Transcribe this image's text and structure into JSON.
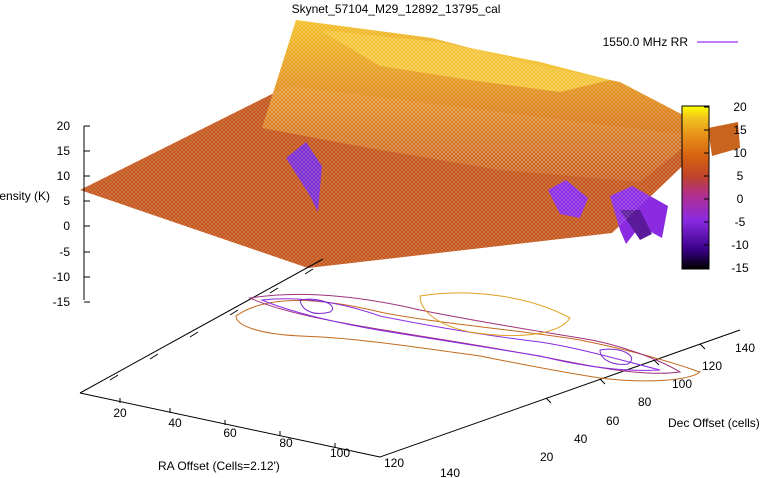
{
  "chart_data": {
    "type": "surface3d",
    "title": "Skynet_57104_M29_12892_13795_cal",
    "series": [
      {
        "name": "1550.0 MHz RR",
        "legend_line_color": "#9b30ff"
      }
    ],
    "axes": {
      "z": {
        "label": "Intensity (K)",
        "ticks": [
          "20",
          "15",
          "10",
          "5",
          "0",
          "-5",
          "-10",
          "-15"
        ],
        "range": [
          -15,
          20
        ]
      },
      "x": {
        "label": "RA Offset (Cells=2.12')",
        "ticks": [
          "20",
          "40",
          "60",
          "80",
          "100",
          "120",
          "140"
        ],
        "range": [
          10,
          145
        ]
      },
      "y": {
        "label": "Dec Offset (cells)",
        "ticks": [
          "20",
          "40",
          "60",
          "80",
          "100",
          "120",
          "140"
        ],
        "range": [
          15,
          145
        ]
      }
    },
    "colorbar": {
      "ticks": [
        "20",
        "15",
        "10",
        "5",
        "0",
        "-5",
        "-10",
        "-15"
      ],
      "range": [
        -15,
        20
      ],
      "palette": [
        "#000000",
        "#3a0088",
        "#8a2be2",
        "#b03090",
        "#c04428",
        "#d86410",
        "#e89018",
        "#f0c020",
        "#ffff00"
      ]
    },
    "surface_levels": {
      "floor_grey_level": 7,
      "ridge_peak": 18,
      "deep_min": -8
    }
  }
}
